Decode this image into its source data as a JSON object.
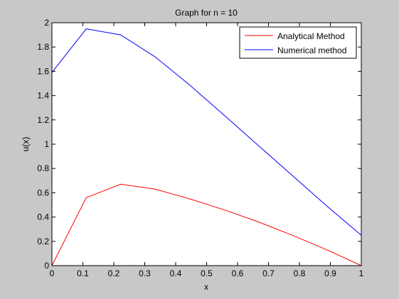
{
  "chart_data": {
    "type": "line",
    "title": "Graph for n = 10",
    "xlabel": "x",
    "ylabel": "u(x)",
    "xlim": [
      0,
      1
    ],
    "ylim": [
      0,
      2
    ],
    "x_ticks": [
      "0",
      "0.1",
      "0.2",
      "0.3",
      "0.4",
      "0.5",
      "0.6",
      "0.7",
      "0.8",
      "0.9",
      "1"
    ],
    "y_ticks": [
      "0",
      "0.2",
      "0.4",
      "0.6",
      "0.8",
      "1",
      "1.2",
      "1.4",
      "1.6",
      "1.8",
      "2"
    ],
    "grid": false,
    "legend_position": "top-right",
    "series": [
      {
        "name": "Analytical Method",
        "color": "#ff0000",
        "x": [
          0,
          0.111,
          0.222,
          0.333,
          0.444,
          0.556,
          0.667,
          0.778,
          0.889,
          1.0
        ],
        "y": [
          0,
          0.56,
          0.67,
          0.63,
          0.55,
          0.46,
          0.36,
          0.25,
          0.13,
          0
        ]
      },
      {
        "name": "Numerical method",
        "color": "#0000ff",
        "x": [
          0,
          0.111,
          0.222,
          0.333,
          0.444,
          0.556,
          0.667,
          0.778,
          0.889,
          1.0
        ],
        "y": [
          1.59,
          1.95,
          1.9,
          1.72,
          1.49,
          1.24,
          0.99,
          0.74,
          0.49,
          0.25
        ]
      }
    ]
  }
}
